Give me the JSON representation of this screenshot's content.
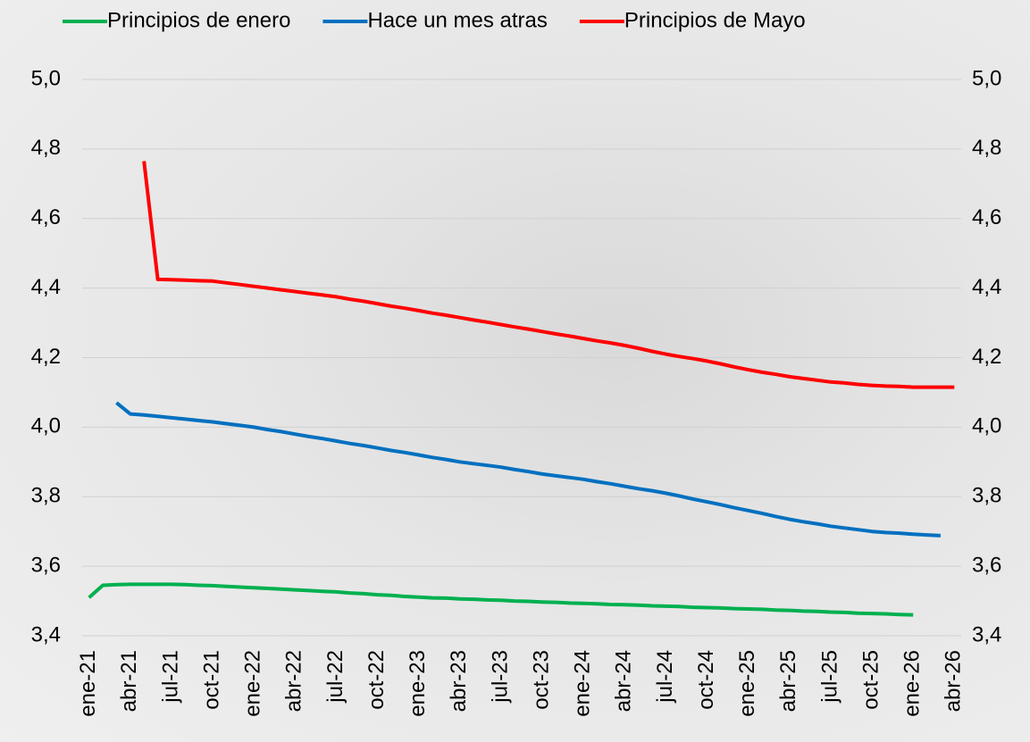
{
  "chart_data": {
    "type": "line",
    "categories": [
      "ene-21",
      null,
      null,
      "abr-21",
      null,
      null,
      "jul-21",
      null,
      null,
      "oct-21",
      null,
      null,
      "ene-22",
      null,
      null,
      "abr-22",
      null,
      null,
      "jul-22",
      null,
      null,
      "oct-22",
      null,
      null,
      "ene-23",
      null,
      null,
      "abr-23",
      null,
      null,
      "jul-23",
      null,
      null,
      "oct-23",
      null,
      null,
      "ene-24",
      null,
      null,
      "abr-24",
      null,
      null,
      "jul-24",
      null,
      null,
      "oct-24",
      null,
      null,
      "ene-25",
      null,
      null,
      "abr-25",
      null,
      null,
      "jul-25",
      null,
      null,
      "oct-25",
      null,
      null,
      "ene-26",
      null,
      null,
      "abr-26"
    ],
    "series": [
      {
        "name": "Principios de enero",
        "color": "#00b050",
        "values": [
          3.51,
          3.545,
          3.547,
          3.548,
          3.548,
          3.548,
          3.548,
          3.547,
          3.545,
          3.544,
          3.542,
          3.54,
          3.538,
          3.536,
          3.534,
          3.532,
          3.53,
          3.528,
          3.526,
          3.523,
          3.521,
          3.518,
          3.516,
          3.513,
          3.511,
          3.509,
          3.508,
          3.506,
          3.505,
          3.503,
          3.502,
          3.5,
          3.499,
          3.497,
          3.496,
          3.494,
          3.493,
          3.492,
          3.49,
          3.489,
          3.488,
          3.486,
          3.485,
          3.484,
          3.482,
          3.481,
          3.48,
          3.478,
          3.477,
          3.476,
          3.474,
          3.473,
          3.471,
          3.47,
          3.468,
          3.467,
          3.465,
          3.464,
          3.463,
          3.461,
          3.46,
          null,
          null,
          null
        ]
      },
      {
        "name": "Hace un mes atras",
        "color": "#0070c0",
        "values": [
          null,
          null,
          4.07,
          4.038,
          4.035,
          4.031,
          4.027,
          4.023,
          4.019,
          4.015,
          4.01,
          4.005,
          4.0,
          3.993,
          3.987,
          3.98,
          3.973,
          3.967,
          3.96,
          3.953,
          3.947,
          3.94,
          3.933,
          3.927,
          3.92,
          3.913,
          3.907,
          3.9,
          3.895,
          3.89,
          3.885,
          3.878,
          3.872,
          3.865,
          3.86,
          3.855,
          3.85,
          3.843,
          3.837,
          3.83,
          3.823,
          3.817,
          3.81,
          3.802,
          3.793,
          3.785,
          3.777,
          3.768,
          3.76,
          3.752,
          3.743,
          3.735,
          3.728,
          3.722,
          3.715,
          3.71,
          3.705,
          3.7,
          3.697,
          3.695,
          3.692,
          3.69,
          3.688,
          null
        ]
      },
      {
        "name": "Principios de Mayo",
        "color": "#ff0000",
        "values": [
          null,
          null,
          null,
          null,
          4.765,
          4.425,
          4.424,
          4.423,
          4.421,
          4.42,
          4.415,
          4.41,
          4.405,
          4.4,
          4.395,
          4.39,
          4.385,
          4.38,
          4.375,
          4.368,
          4.362,
          4.355,
          4.348,
          4.342,
          4.335,
          4.328,
          4.322,
          4.315,
          4.308,
          4.302,
          4.295,
          4.288,
          4.282,
          4.275,
          4.268,
          4.262,
          4.255,
          4.248,
          4.242,
          4.235,
          4.227,
          4.218,
          4.21,
          4.203,
          4.197,
          4.19,
          4.182,
          4.173,
          4.165,
          4.158,
          4.152,
          4.145,
          4.14,
          4.135,
          4.13,
          4.127,
          4.123,
          4.12,
          4.118,
          4.117,
          4.115,
          4.115,
          4.115,
          4.115
        ]
      }
    ],
    "ylim": [
      3.4,
      5.0
    ],
    "yticks": [
      {
        "value": 3.4,
        "label": "3,4"
      },
      {
        "value": 3.6,
        "label": "3,6"
      },
      {
        "value": 3.8,
        "label": "3,8"
      },
      {
        "value": 4.0,
        "label": "4,0"
      },
      {
        "value": 4.2,
        "label": "4,2"
      },
      {
        "value": 4.4,
        "label": "4,4"
      },
      {
        "value": 4.6,
        "label": "4,6"
      },
      {
        "value": 4.8,
        "label": "4,8"
      },
      {
        "value": 5.0,
        "label": "5,0"
      }
    ],
    "y2lim": [
      3.4,
      5.0
    ],
    "y2ticks": [
      {
        "value": 3.4,
        "label": "3,4"
      },
      {
        "value": 3.6,
        "label": "3,6"
      },
      {
        "value": 3.8,
        "label": "3,8"
      },
      {
        "value": 4.0,
        "label": "4,0"
      },
      {
        "value": 4.2,
        "label": "4,2"
      },
      {
        "value": 4.4,
        "label": "4,4"
      },
      {
        "value": 4.6,
        "label": "4,6"
      },
      {
        "value": 4.8,
        "label": "4,8"
      },
      {
        "value": 5.0,
        "label": "5,0"
      }
    ],
    "grid": true,
    "legend": "top"
  }
}
